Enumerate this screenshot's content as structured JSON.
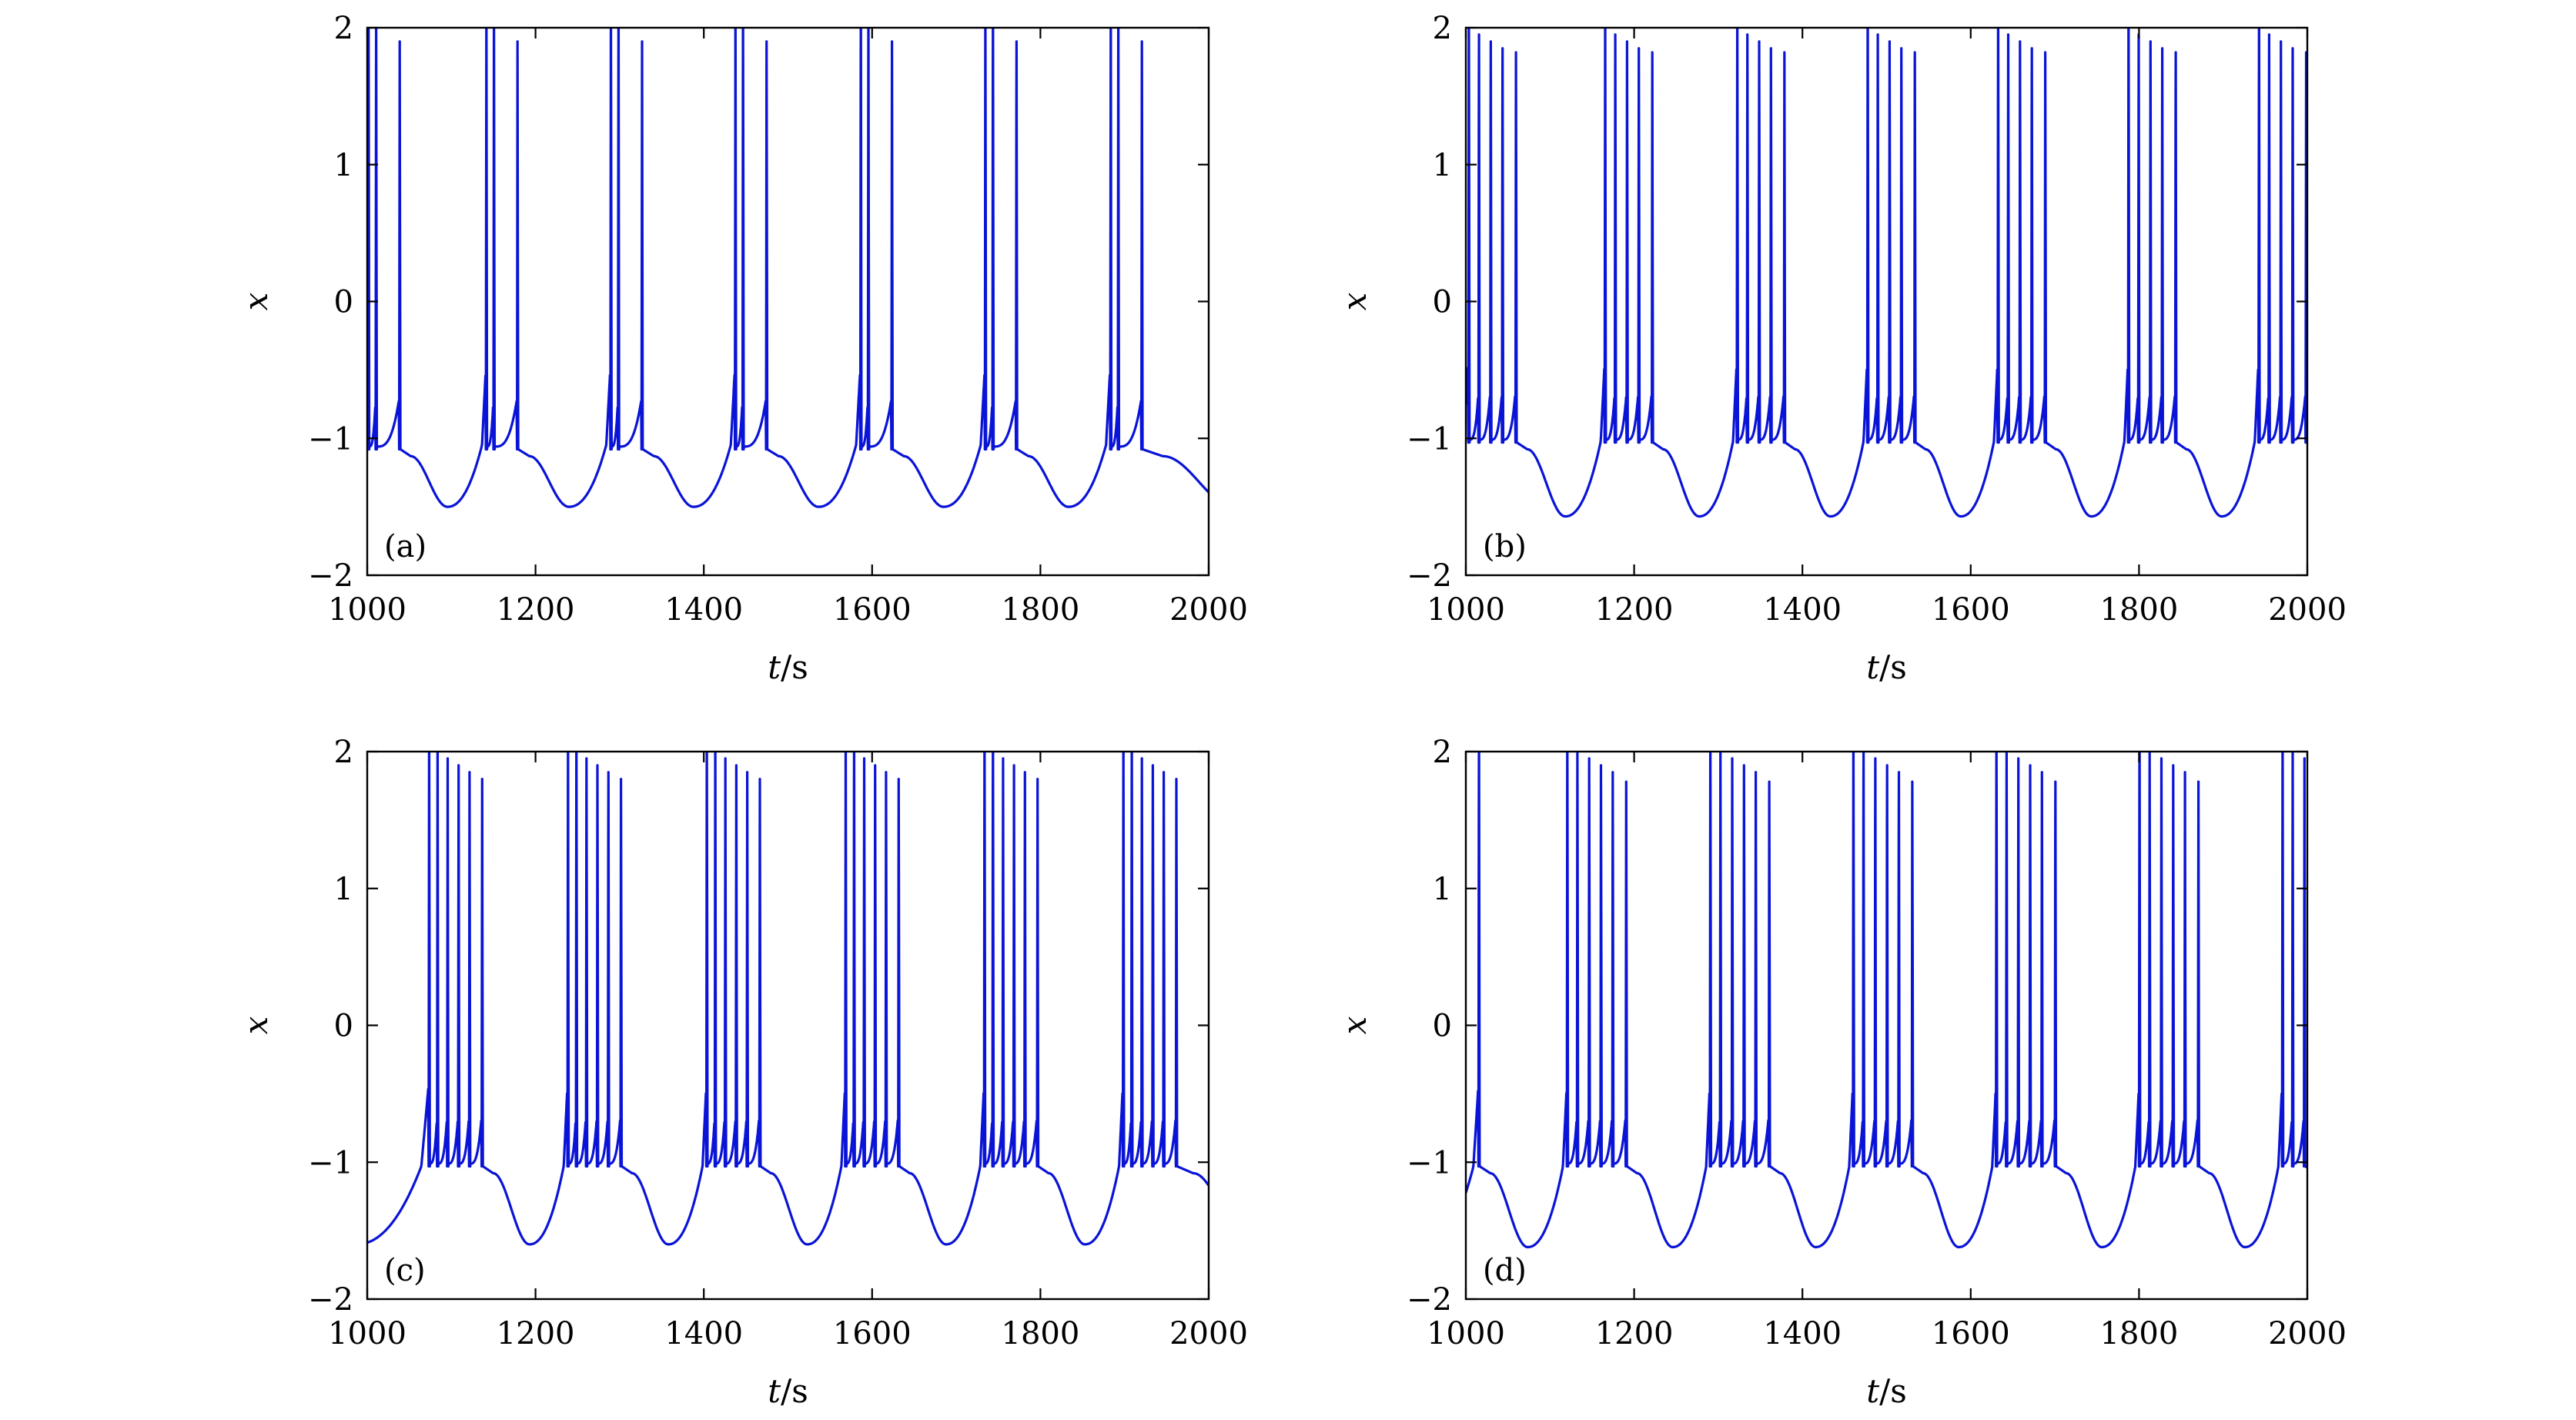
{
  "colors": {
    "line": "#0a14d6",
    "axis": "#000000",
    "background": "#ffffff"
  },
  "chart_data": [
    {
      "type": "line",
      "panel_label": "(a)",
      "xlabel": "t/s",
      "ylabel": "x",
      "xlim": [
        1000,
        2000
      ],
      "ylim": [
        -2,
        2
      ],
      "xticks": [
        1000,
        1200,
        1400,
        1600,
        1800,
        2000
      ],
      "yticks": [
        -2,
        -1,
        0,
        1,
        2
      ],
      "legend": "none",
      "grid": false,
      "series": [
        {
          "color": "#0a14d6",
          "waveform": "bursting",
          "burst_starts": [
            1001,
            1141,
            1289,
            1437,
            1586,
            1734,
            1883
          ],
          "spike_offsets": [
            0,
            9,
            37
          ],
          "spike_peaks": [
            2.2,
            2.2,
            1.9
          ],
          "reset_level": -1.08,
          "trough_min": -1.5,
          "trough_times": [
            1082,
            1232,
            1380,
            1528,
            1677,
            1825,
            1980
          ]
        }
      ]
    },
    {
      "type": "line",
      "panel_label": "(b)",
      "xlabel": "t/s",
      "ylabel": "x",
      "xlim": [
        1000,
        2000
      ],
      "ylim": [
        -2,
        2
      ],
      "xticks": [
        1000,
        1200,
        1400,
        1600,
        1800,
        2000
      ],
      "yticks": [
        -2,
        -1,
        0,
        1,
        2
      ],
      "legend": "none",
      "grid": false,
      "series": [
        {
          "color": "#0a14d6",
          "waveform": "bursting",
          "burst_starts": [
            1003,
            1165,
            1322,
            1477,
            1632,
            1787,
            1942
          ],
          "spike_offsets": [
            0,
            12,
            26,
            40,
            56
          ],
          "spike_peaks": [
            2.2,
            1.95,
            1.9,
            1.85,
            1.82
          ],
          "reset_level": -1.03,
          "trough_min": -1.57,
          "trough_times": [
            1115,
            1272,
            1428,
            1584,
            1739,
            1894
          ]
        }
      ]
    },
    {
      "type": "line",
      "panel_label": "(c)",
      "xlabel": "t/s",
      "ylabel": "x",
      "xlim": [
        1000,
        2000
      ],
      "ylim": [
        -2,
        2
      ],
      "xticks": [
        1000,
        1200,
        1400,
        1600,
        1800,
        2000
      ],
      "yticks": [
        -2,
        -1,
        0,
        1,
        2
      ],
      "legend": "none",
      "grid": false,
      "series": [
        {
          "color": "#0a14d6",
          "waveform": "bursting",
          "burst_starts": [
            1073,
            1238,
            1403,
            1568,
            1733,
            1898
          ],
          "spike_offsets": [
            0,
            10,
            22,
            35,
            48,
            63
          ],
          "spike_peaks": [
            2.2,
            2.2,
            1.95,
            1.9,
            1.85,
            1.8
          ],
          "reset_level": -1.03,
          "trough_min": -1.6,
          "trough_times": [
            1010,
            1185,
            1350,
            1515,
            1680,
            1845
          ]
        }
      ]
    },
    {
      "type": "line",
      "panel_label": "(d)",
      "xlabel": "t/s",
      "ylabel": "x",
      "xlim": [
        1000,
        2000
      ],
      "ylim": [
        -2,
        2
      ],
      "xticks": [
        1000,
        1200,
        1400,
        1600,
        1800,
        2000
      ],
      "yticks": [
        -2,
        -1,
        0,
        1,
        2
      ],
      "legend": "none",
      "grid": false,
      "series": [
        {
          "color": "#0a14d6",
          "waveform": "bursting",
          "burst_starts": [
            1015,
            1120,
            1290,
            1460,
            1630,
            1800,
            1970
          ],
          "spike_offsets": [
            0,
            12,
            26,
            40,
            54,
            70
          ],
          "spike_peaks": [
            2.2,
            2.0,
            1.95,
            1.9,
            1.85,
            1.78
          ],
          "first_burst_spike_count": 1,
          "last_burst_spike_count": 3,
          "reset_level": -1.03,
          "trough_min": -1.62,
          "trough_times": [
            1068,
            1237,
            1407,
            1577,
            1747,
            1917
          ]
        }
      ]
    }
  ]
}
